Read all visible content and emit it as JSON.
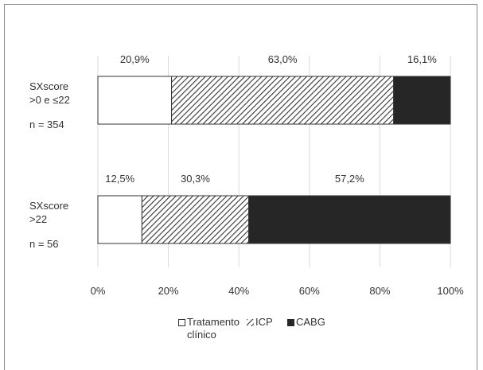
{
  "chart_data": {
    "type": "bar",
    "orientation": "horizontal",
    "stacked": true,
    "percent": true,
    "categories": [
      {
        "label_lines": [
          "SXscore",
          ">0 e ≤22"
        ],
        "n_label": "n = 354"
      },
      {
        "label_lines": [
          "SXscore",
          ">22"
        ],
        "n_label": "n = 56"
      }
    ],
    "series": [
      {
        "name": "Tratamento clínico",
        "legend_lines": [
          "Tratamento",
          "clínico"
        ],
        "fill": "none",
        "values": [
          20.9,
          12.5
        ],
        "labels": [
          "20,9%",
          "12,5%"
        ]
      },
      {
        "name": "ICP",
        "legend_lines": [
          "ICP"
        ],
        "fill": "hatch",
        "values": [
          63.0,
          30.3
        ],
        "labels": [
          "63,0%",
          "30,3%"
        ]
      },
      {
        "name": "CABG",
        "legend_lines": [
          "CABG"
        ],
        "fill": "solid",
        "values": [
          16.1,
          57.2
        ],
        "labels": [
          "16,1%",
          "57,2%"
        ]
      }
    ],
    "xlim": [
      0,
      100
    ],
    "xticks": [
      "0%",
      "20%",
      "40%",
      "60%",
      "80%",
      "100%"
    ],
    "grid": "vertical",
    "legend_position": "bottom",
    "colors": {
      "grid": "#d9d9d9",
      "solid": "#262626",
      "border": "#333333",
      "text": "#333333"
    }
  }
}
